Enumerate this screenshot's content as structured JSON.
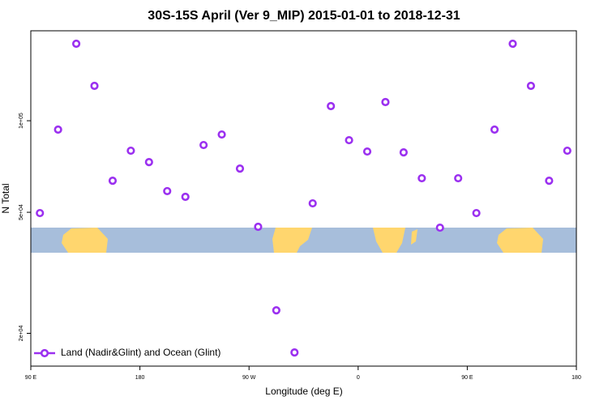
{
  "chart_data": {
    "type": "scatter",
    "title": "30S-15S April (Ver 9_MIP)   2015-01-01 to 2018-12-31",
    "x_label": "Longitude (deg E)",
    "y_label": "N Total",
    "xlim": [
      90,
      540
    ],
    "xticks": [
      {
        "value": 90,
        "label": "90 E"
      },
      180,
      {
        "value": 270,
        "label": "90 W"
      },
      {
        "value": 360,
        "label": "0"
      },
      {
        "value": 450,
        "label": "90 E"
      },
      {
        "value": 540,
        "label": "180"
      }
    ],
    "ylim": [
      15600,
      197600
    ],
    "yticks": [
      {
        "value": 20000,
        "label": "2e+04"
      },
      {
        "value": 50000,
        "label": "5e+04"
      },
      {
        "value": 100000,
        "label": "1e+05"
      }
    ],
    "y_scale": "log",
    "grid": false,
    "legend": "bottom left",
    "series": [
      {
        "name": "Land (Nadir&Glint) and Ocean (Glint)",
        "color": "#9b30f0",
        "x": [
          97.5,
          112.5,
          127.5,
          142.5,
          157.5,
          172.5,
          187.5,
          202.5,
          217.5,
          232.5,
          247.5,
          262.5,
          277.5,
          292.5,
          307.5,
          322.5,
          337.5,
          352.5,
          367.5,
          382.5,
          397.5,
          412.5,
          427.5,
          442.5,
          457.5,
          472.5,
          487.5,
          502.5,
          517.5,
          532.5
        ],
        "values": [
          49700,
          93500,
          179100,
          130200,
          63500,
          79700,
          73100,
          58700,
          56200,
          83200,
          90100,
          69600,
          44800,
          23800,
          17300,
          53500,
          111700,
          86300,
          79200,
          115200,
          78700,
          64700,
          44500,
          64700,
          49700,
          93500,
          179100,
          130200,
          63500,
          79700
        ]
      }
    ]
  }
}
